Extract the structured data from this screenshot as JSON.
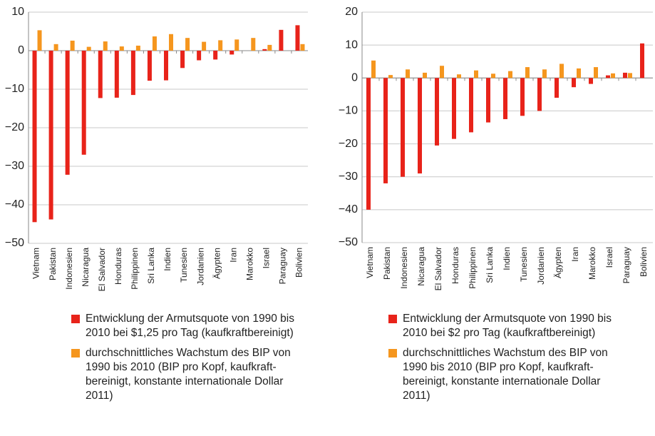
{
  "chart_data": [
    {
      "type": "bar",
      "categories": [
        "Vietnam",
        "Pakistan",
        "Indonesien",
        "Nicaragua",
        "El Salvador",
        "Honduras",
        "Philippinen",
        "Sri Lanka",
        "Indien",
        "Tunesien",
        "Jordanien",
        "Ägypten",
        "Iran",
        "Marokko",
        "Israel",
        "Paraguay",
        "Bolivien"
      ],
      "series": [
        {
          "name": "Entwicklung der Armutsquote von 1990 bis 2010 bei $1,25 pro Tag (kaufkraftbereinigt)",
          "color": "#e8231a",
          "values": [
            -44.5,
            -43.8,
            -32.2,
            -27,
            -12.3,
            -12.2,
            -11.5,
            -7.8,
            -7.7,
            -4.5,
            -2.5,
            -2.3,
            -1,
            0,
            0.4,
            5.4,
            6.6
          ]
        },
        {
          "name": "durchschnittliches Wachstum des BIP von 1990 bis 2010 (BIP pro Kopf, kaufkraft­bereinigt, konstante internationale Dollar 2011)",
          "color": "#f5961e",
          "values": [
            5.3,
            1.7,
            2.6,
            1.0,
            2.4,
            1.1,
            1.3,
            3.7,
            4.3,
            3.3,
            2.3,
            2.7,
            2.9,
            3.3,
            1.5,
            0,
            1.7
          ]
        }
      ],
      "ylim": [
        -50,
        10
      ],
      "yticks": [
        {
          "value": -50,
          "label": "−50"
        },
        {
          "value": -40,
          "label": "−40"
        },
        {
          "value": -30,
          "label": "−30"
        },
        {
          "value": -20,
          "label": "−20"
        },
        {
          "value": -10,
          "label": "−10"
        },
        0,
        10
      ],
      "grid": true
    },
    {
      "type": "bar",
      "categories": [
        "Vietnam",
        "Pakistan",
        "Indonesien",
        "Nicaragua",
        "El Salvador",
        "Honduras",
        "Philippinen",
        "Sri Lanka",
        "Indien",
        "Tunesien",
        "Jordanien",
        "Ägypten",
        "Iran",
        "Marokko",
        "Israel",
        "Paraguay",
        "Bolivien"
      ],
      "series": [
        {
          "name": "Entwicklung der Armutsquote von 1990 bis 2010 bei $2 pro Tag (kaufkraftbereinigt)",
          "color": "#e8231a",
          "values": [
            -40,
            -32,
            -30,
            -29,
            -20.5,
            -18.5,
            -16.5,
            -13.5,
            -12.5,
            -11.5,
            -10,
            -6,
            -2.8,
            -1.8,
            0.8,
            1.6,
            10.5
          ]
        },
        {
          "name": "durchschnittliches Wachstum des BIP von 1990 bis 2010 (BIP pro Kopf, kaufkraft­bereinigt, konstante internationale Dollar 2011)",
          "color": "#f5961e",
          "values": [
            5.3,
            0.9,
            2.6,
            1.6,
            3.7,
            1.1,
            2.3,
            1.3,
            2.1,
            3.3,
            2.6,
            4.3,
            2.9,
            3.3,
            1.4,
            1.5,
            0
          ]
        }
      ],
      "ylim": [
        -50,
        20
      ],
      "yticks": [
        {
          "value": -50,
          "label": "−50"
        },
        {
          "value": -40,
          "label": "−40"
        },
        {
          "value": -30,
          "label": "−30"
        },
        {
          "value": -20,
          "label": "−20"
        },
        {
          "value": -10,
          "label": "−10"
        },
        0,
        10,
        20
      ],
      "grid": true
    }
  ]
}
